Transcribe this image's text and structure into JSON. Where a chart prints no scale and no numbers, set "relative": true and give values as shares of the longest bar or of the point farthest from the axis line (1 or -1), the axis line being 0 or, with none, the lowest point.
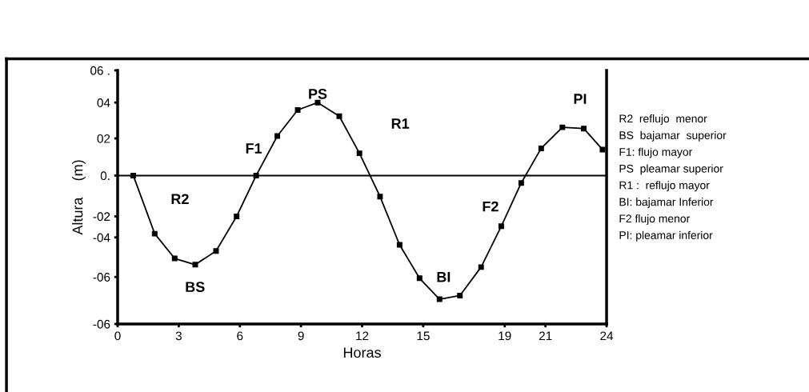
{
  "chart_data": {
    "type": "line",
    "xlabel": "Horas",
    "ylabel": "Altura    (m)",
    "relative": true,
    "x": [
      0.77,
      1.82,
      2.8,
      3.81,
      4.83,
      5.84,
      6.8,
      7.84,
      8.84,
      9.82,
      10.88,
      11.87,
      12.88,
      13.84,
      14.82,
      15.8,
      16.8,
      17.84,
      18.83,
      19.81,
      20.79,
      21.83,
      22.88,
      23.8
    ],
    "series": [
      {
        "color": "#000000",
        "values": [
          0.0,
          -0.47,
          -0.67,
          -0.72,
          -0.61,
          -0.33,
          0.0,
          0.32,
          0.53,
          0.59,
          0.48,
          0.18,
          -0.17,
          -0.56,
          -0.83,
          -1.0,
          -0.97,
          -0.74,
          -0.41,
          -0.06,
          0.22,
          0.39,
          0.38,
          0.21
        ]
      }
    ],
    "marker": "square",
    "line_style": "solid",
    "xlim": [
      0,
      24
    ],
    "xticks": [
      0,
      3,
      6,
      9,
      12,
      15,
      19,
      21,
      24
    ],
    "ref_lines": [
      {
        "axis": "y",
        "value": 0,
        "color": "#000000"
      }
    ],
    "annotations": [
      "06 .",
      "04",
      "02",
      "0.",
      "-02",
      "-04",
      "-06",
      "-06",
      "R2",
      "BS",
      "F1",
      "PS",
      "R1",
      "BI",
      "F2",
      "PI",
      "R2  reflujo  menor",
      "BS  bajamar  superior",
      "F1: flujo mayor",
      "PS  pleamar superior",
      "R1 :  reflujo mayor",
      "BI: bajamar Inferior",
      "F2 flujo menor",
      "PI: pleamar inferior"
    ]
  }
}
